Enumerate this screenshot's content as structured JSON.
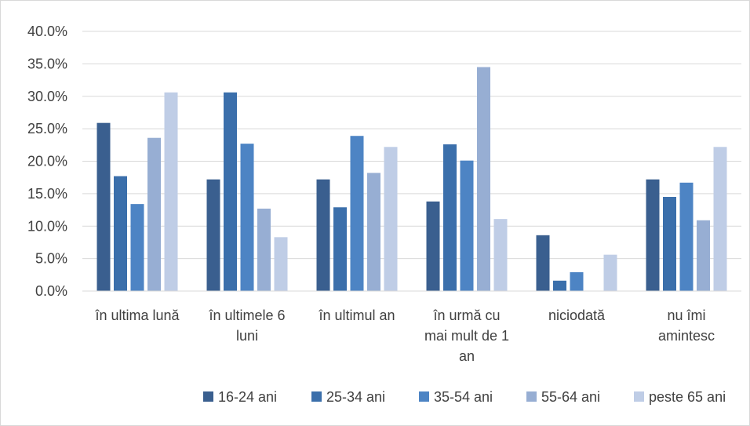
{
  "chart_data": {
    "type": "bar",
    "title": "",
    "xlabel": "",
    "ylabel": "",
    "ylim": [
      0,
      40
    ],
    "y_tick_labels": [
      "0.0%",
      "5.0%",
      "10.0%",
      "15.0%",
      "20.0%",
      "25.0%",
      "30.0%",
      "35.0%",
      "40.0%"
    ],
    "categories": [
      [
        "în ultima lună"
      ],
      [
        "în ultimele 6",
        "luni"
      ],
      [
        "în ultimul an"
      ],
      [
        "în urmă cu",
        "mai mult de 1",
        "an"
      ],
      [
        "niciodată"
      ],
      [
        "nu îmi",
        "amintesc"
      ]
    ],
    "series": [
      {
        "name": "16-24 ani",
        "color": "#3a5f8f",
        "values": [
          25.9,
          17.2,
          17.2,
          13.8,
          8.6,
          17.2
        ]
      },
      {
        "name": "25-34 ani",
        "color": "#3b6fab",
        "values": [
          17.7,
          30.6,
          12.9,
          22.6,
          1.6,
          14.5
        ]
      },
      {
        "name": "35-54 ani",
        "color": "#4d84c4",
        "values": [
          13.4,
          22.7,
          23.9,
          20.1,
          2.9,
          16.7
        ]
      },
      {
        "name": "55-64 ani",
        "color": "#97aed3",
        "values": [
          23.6,
          12.7,
          18.2,
          34.5,
          0.0,
          10.9
        ]
      },
      {
        "name": "peste 65 ani",
        "color": "#bfcde6",
        "values": [
          30.6,
          8.3,
          22.2,
          11.1,
          5.6,
          22.2
        ]
      }
    ],
    "grid": true,
    "legend_position": "bottom"
  }
}
